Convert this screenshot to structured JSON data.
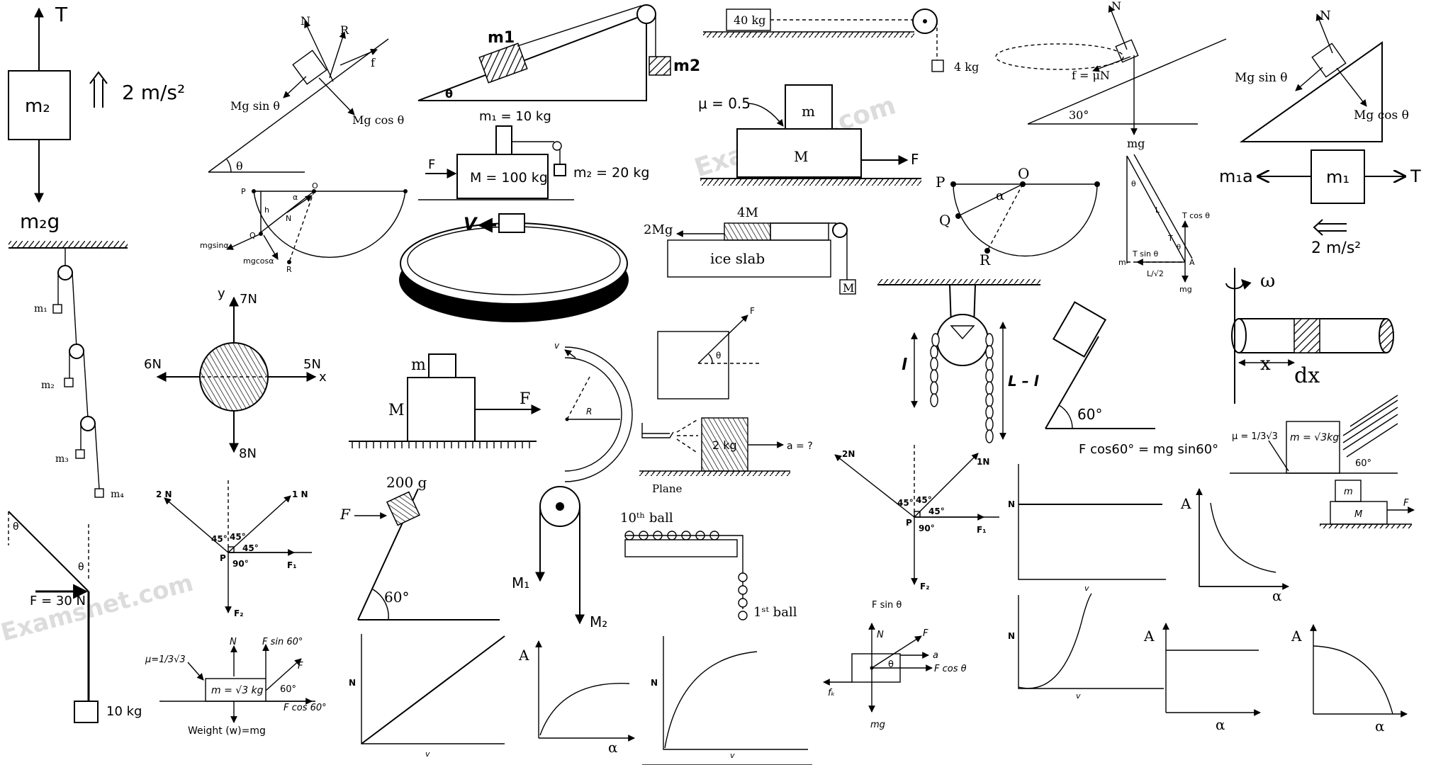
{
  "watermark": "Examsnet.com",
  "d1": {
    "mass": "m₂",
    "tension": "T",
    "accel": "2 m/s²",
    "weight": "m₂g"
  },
  "d2": {
    "n": "N",
    "r": "R",
    "f": "f",
    "sin": "Mg sin θ",
    "cos": "Mg cos θ",
    "theta": "θ"
  },
  "d3": {
    "m1": "m1",
    "m2": "m2",
    "theta": "θ"
  },
  "d4": {
    "m1": "m₁ = 10 kg",
    "M": "M = 100 kg",
    "m2": "m₂ = 20 kg",
    "F": "F"
  },
  "d5": {
    "block": "40 kg",
    "hang": "4 kg"
  },
  "d6": {
    "mu": "μ = 0.5",
    "m": "m",
    "M": "M",
    "F": "F"
  },
  "d7": {
    "n": "N",
    "f": "f = μN",
    "angle": "30°",
    "mg": "mg"
  },
  "d8": {
    "n": "N",
    "sin": "Mg sin θ",
    "cos": "Mg cos θ"
  },
  "d9": {
    "p": "P",
    "o": "O",
    "alpha": "α",
    "h": "h",
    "n": "N",
    "q": "Q",
    "r": "R",
    "sin": "mgsinα",
    "cos": "mgcosα"
  },
  "d10": {
    "v": "V"
  },
  "d11": {
    "twomg": "2Mg",
    "fourm": "4M",
    "slab": "ice slab",
    "m": "M"
  },
  "d12": {
    "p": "P",
    "o": "O",
    "alpha": "α",
    "q": "Q",
    "r": "R"
  },
  "d13": {
    "tcos": "T cos θ",
    "tsin": "T sin θ",
    "m": "m",
    "a": "A",
    "l": "L",
    "t": "T",
    "theta": "θ",
    "lroot": "L/√2",
    "mg": "mg"
  },
  "d14": {
    "m1a": "m₁a",
    "m1": "m₁",
    "t": "T",
    "accel": "2 m/s²"
  },
  "d15": {
    "m1": "m₁",
    "m2": "m₂",
    "m3": "m₃",
    "m4": "m₄"
  },
  "d16": {
    "y": "y",
    "x": "x",
    "n7": "7N",
    "n6": "6N",
    "n5": "5N",
    "n8": "8N"
  },
  "d17": {
    "m": "m",
    "M": "M",
    "F": "F"
  },
  "d18": {
    "v": "v",
    "r": "R"
  },
  "d19": {
    "f": "F",
    "theta": "θ"
  },
  "d20": {
    "mass": "2 kg",
    "acc": "a = ?",
    "plane": "Plane"
  },
  "d21": {
    "l": "l",
    "ll": "L – l"
  },
  "d22": {
    "angle": "60°",
    "eq": "F cos60° = mg sin60°"
  },
  "d23": {
    "omega": "ω",
    "x": "x",
    "dx": "dx"
  },
  "d24": {
    "theta": "θ",
    "theta2": "θ",
    "force": "F = 30 N",
    "mass": "10 kg"
  },
  "d25": {
    "n2": "2 N",
    "n1": "1 N",
    "a45a": "45°",
    "a45b": "45°",
    "a45c": "45°",
    "a90": "90°",
    "p": "P",
    "f1": "F₁",
    "f2": "F₂"
  },
  "d26": {
    "mass": "200 g",
    "f": "F",
    "angle": "60°"
  },
  "d27": {
    "m1": "M₁",
    "m2": "M₂"
  },
  "d28": {
    "ball10": "10ᵗʰ ball",
    "ball1": "1ˢᵗ ball"
  },
  "d29": {
    "n2": "2N",
    "n1": "1N",
    "a45a": "45°",
    "a45b": "45°",
    "a45c": "45°",
    "a90": "90°",
    "p": "P",
    "f1": "F₁",
    "f2": "F₂"
  },
  "d30": {
    "mu": "μ = 1/3√3",
    "mass": "m = √3kg",
    "angle": "60°"
  },
  "d31": {
    "m": "m",
    "M": "M",
    "F": "F"
  },
  "d32": {
    "mu": "μ=1/3√3",
    "n": "N",
    "fsin": "F sin 60°",
    "f": "F",
    "mass": "m = √3 kg",
    "angle": "60°",
    "fcos": "F cos 60°",
    "weight": "Weight (w)=mg"
  },
  "d33": {
    "fsin": "F sin θ",
    "n": "N",
    "f": "F",
    "a": "a",
    "theta": "θ",
    "fcos": "F cos θ",
    "fk": "fₖ",
    "mg": "mg"
  },
  "graphs": {
    "g1": {
      "y": "N",
      "x": "v"
    },
    "g2": {
      "y": "A",
      "x": "α"
    },
    "g3": {
      "y": "N",
      "x": "v"
    },
    "g4": {
      "y": "N",
      "x": "v"
    },
    "g5": {
      "y": "A",
      "x": "α"
    },
    "g6": {
      "y": "N",
      "x": "v"
    },
    "g7": {
      "y": "A",
      "x": "α"
    },
    "g8": {
      "y": "A",
      "x": "α"
    }
  }
}
